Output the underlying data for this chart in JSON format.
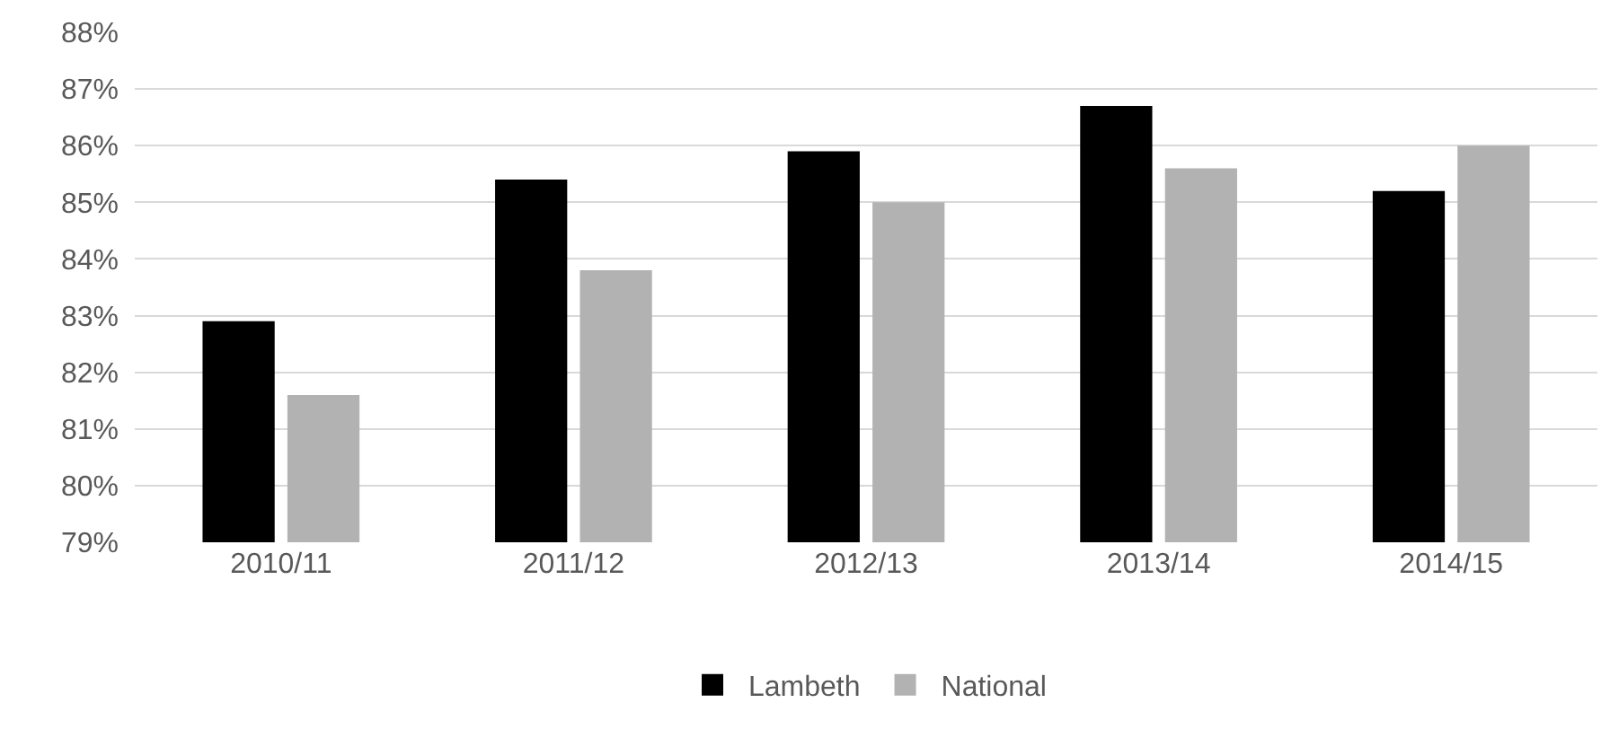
{
  "chart_data": {
    "type": "bar",
    "categories": [
      "2010/11",
      "2011/12",
      "2012/13",
      "2013/14",
      "2014/15"
    ],
    "series": [
      {
        "name": "Lambeth",
        "color": "#000000",
        "values": [
          82.9,
          85.4,
          85.9,
          86.7,
          85.2
        ]
      },
      {
        "name": "National",
        "color": "#b2b2b2",
        "values": [
          81.6,
          83.8,
          85.0,
          85.6,
          86.0
        ]
      }
    ],
    "ylim": [
      79,
      88
    ],
    "yticks": [
      {
        "value": 79,
        "label": "79%"
      },
      {
        "value": 80,
        "label": "80%"
      },
      {
        "value": 81,
        "label": "81%"
      },
      {
        "value": 82,
        "label": "82%"
      },
      {
        "value": 83,
        "label": "83%"
      },
      {
        "value": 84,
        "label": "84%"
      },
      {
        "value": 85,
        "label": "85%"
      },
      {
        "value": 86,
        "label": "86%"
      },
      {
        "value": 87,
        "label": "87%"
      },
      {
        "value": 88,
        "label": "88%"
      }
    ],
    "grid": "y",
    "legend": "bottom"
  }
}
